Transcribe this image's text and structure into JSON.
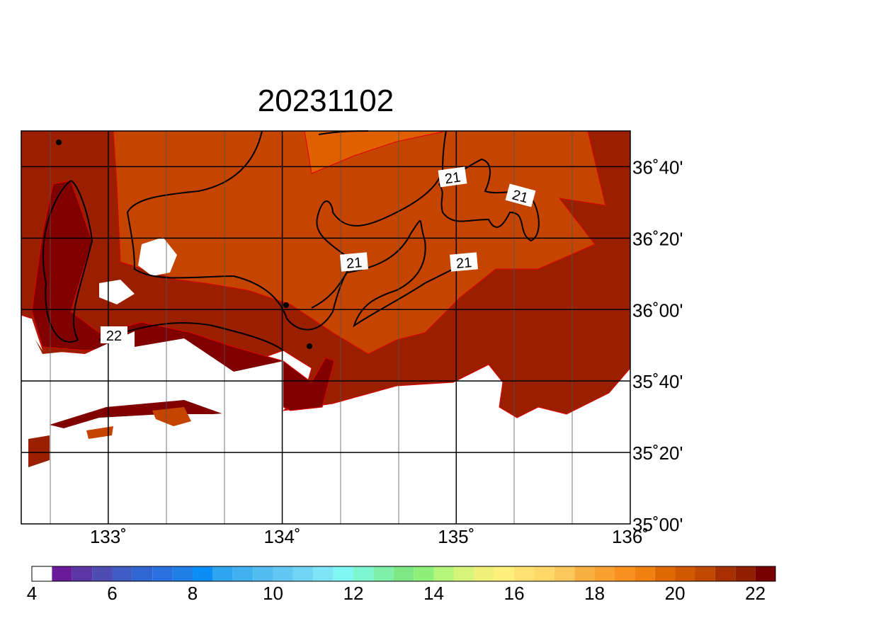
{
  "header": {
    "title": "20231102"
  },
  "map": {
    "xlim": [
      132.5,
      136
    ],
    "ylim": [
      35,
      36.8333
    ],
    "xticks": [
      {
        "value": 133,
        "label": "133˚"
      },
      {
        "value": 134,
        "label": "134˚"
      },
      {
        "value": 135,
        "label": "135˚"
      },
      {
        "value": 136,
        "label": "136˚"
      }
    ],
    "yticks": [
      {
        "value": 35,
        "label": "35˚00'"
      },
      {
        "value": 35.3333,
        "label": "35˚20'"
      },
      {
        "value": 35.6667,
        "label": "35˚40'"
      },
      {
        "value": 36,
        "label": "36˚00'"
      },
      {
        "value": 36.3333,
        "label": "36˚20'"
      },
      {
        "value": 36.6667,
        "label": "36˚40'"
      }
    ],
    "contour_labels": [
      "21",
      "21",
      "21",
      "21",
      "22"
    ]
  },
  "colorbar": {
    "lim": [
      4,
      22.5
    ],
    "ticks": [
      4,
      6,
      8,
      10,
      12,
      14,
      16,
      18,
      20,
      22
    ],
    "colors": [
      "#ffffff",
      "#6a1b9a",
      "#5c35a5",
      "#4e4cb3",
      "#3f5cc4",
      "#3066d2",
      "#2a6fe0",
      "#1f7ee8",
      "#0a8ef5",
      "#2fa4ef",
      "#40b0ef",
      "#52bcf0",
      "#62c8f3",
      "#70d4f6",
      "#7ee4f8",
      "#7ff7f3",
      "#7ef7d0",
      "#7ef0a8",
      "#7ee884",
      "#8ef07a",
      "#b4f57a",
      "#d4f57a",
      "#eef07a",
      "#fff07a",
      "#ffe070",
      "#ffd868",
      "#fcc85c",
      "#f8b040",
      "#f8a030",
      "#f89020",
      "#f08010",
      "#e06800",
      "#d05800",
      "#c04800",
      "#a83000",
      "#902000",
      "#780000"
    ]
  }
}
